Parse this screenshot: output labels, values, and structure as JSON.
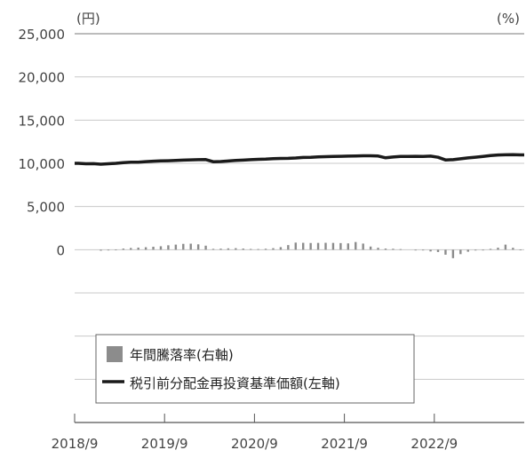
{
  "chart_data": {
    "type": "line",
    "left_axis": {
      "unit_label": "(円)",
      "ticks": [
        "25,000",
        "20,000",
        "15,000",
        "10,000",
        "5,000",
        "0"
      ],
      "tick_values": [
        25000,
        20000,
        15000,
        10000,
        5000,
        0
      ],
      "ylim": [
        -20000,
        25000
      ]
    },
    "right_axis": {
      "unit_label": "(%)",
      "ylim": [
        -180,
        225
      ]
    },
    "x_axis": {
      "tick_labels": [
        "2018/9",
        "2019/9",
        "2020/9",
        "2021/9",
        "2022/9"
      ],
      "range": [
        "2018/9",
        "2023/8"
      ]
    },
    "legend": {
      "placement": "lower-left",
      "items": [
        {
          "label": "年間騰落率(右軸)",
          "kind": "bar",
          "color": "#8c8c8c"
        },
        {
          "label": "税引前分配金再投資基準価額(左軸)",
          "kind": "line",
          "color": "#1a1a1a"
        }
      ]
    },
    "grid": "horizontal",
    "series": [
      {
        "type": "line",
        "axis": "left",
        "color": "#1a1a1a",
        "x": [
          "2018/9",
          "2018/10",
          "2018/11",
          "2018/12",
          "2019/1",
          "2019/2",
          "2019/3",
          "2019/4",
          "2019/5",
          "2019/6",
          "2019/7",
          "2019/8",
          "2019/9",
          "2019/10",
          "2019/11",
          "2019/12",
          "2020/1",
          "2020/2",
          "2020/3",
          "2020/4",
          "2020/5",
          "2020/6",
          "2020/7",
          "2020/8",
          "2020/9",
          "2020/10",
          "2020/11",
          "2020/12",
          "2021/1",
          "2021/2",
          "2021/3",
          "2021/4",
          "2021/5",
          "2021/6",
          "2021/7",
          "2021/8",
          "2021/9",
          "2021/10",
          "2021/11",
          "2021/12",
          "2022/1",
          "2022/2",
          "2022/3",
          "2022/4",
          "2022/5",
          "2022/6",
          "2022/7",
          "2022/8",
          "2022/9",
          "2022/10",
          "2022/11",
          "2022/12",
          "2023/1",
          "2023/2",
          "2023/3",
          "2023/4",
          "2023/5",
          "2023/6",
          "2023/7",
          "2023/8"
        ],
        "values": [
          10000,
          9950,
          9960,
          9900,
          9950,
          10000,
          10080,
          10120,
          10120,
          10200,
          10250,
          10280,
          10300,
          10330,
          10370,
          10400,
          10420,
          10430,
          10180,
          10210,
          10270,
          10330,
          10370,
          10420,
          10460,
          10480,
          10530,
          10570,
          10580,
          10620,
          10680,
          10700,
          10740,
          10770,
          10790,
          10810,
          10830,
          10850,
          10870,
          10870,
          10840,
          10640,
          10730,
          10790,
          10800,
          10810,
          10790,
          10830,
          10700,
          10390,
          10420,
          10520,
          10630,
          10710,
          10800,
          10890,
          10970,
          10990,
          11010,
          10980
        ]
      },
      {
        "type": "bar",
        "axis": "right",
        "color": "#8c8c8c",
        "x": [
          "2018/9",
          "2018/10",
          "2018/11",
          "2018/12",
          "2019/1",
          "2019/2",
          "2019/3",
          "2019/4",
          "2019/5",
          "2019/6",
          "2019/7",
          "2019/8",
          "2019/9",
          "2019/10",
          "2019/11",
          "2019/12",
          "2020/1",
          "2020/2",
          "2020/3",
          "2020/4",
          "2020/5",
          "2020/6",
          "2020/7",
          "2020/8",
          "2020/9",
          "2020/10",
          "2020/11",
          "2020/12",
          "2021/1",
          "2021/2",
          "2021/3",
          "2021/4",
          "2021/5",
          "2021/6",
          "2021/7",
          "2021/8",
          "2021/9",
          "2021/10",
          "2021/11",
          "2021/12",
          "2022/1",
          "2022/2",
          "2022/3",
          "2022/4",
          "2022/5",
          "2022/6",
          "2022/7",
          "2022/8",
          "2022/9",
          "2022/10",
          "2022/11",
          "2022/12",
          "2023/1",
          "2023/2",
          "2023/3",
          "2023/4",
          "2023/5",
          "2023/6",
          "2023/7",
          "2023/8"
        ],
        "values": [
          0,
          0,
          0,
          -1,
          -0.5,
          0.3,
          1.2,
          1.8,
          2.2,
          2.6,
          3.1,
          3.6,
          4.6,
          5.3,
          6.1,
          6.3,
          5.6,
          4.2,
          0.9,
          1.1,
          1.4,
          1.6,
          1.2,
          0.8,
          0.7,
          1.0,
          1.6,
          2.7,
          4.8,
          7.4,
          7.2,
          7.0,
          7.1,
          7.2,
          7.1,
          6.9,
          6.6,
          8.0,
          6.4,
          3.3,
          2.0,
          1.2,
          1.0,
          0.6,
          0,
          -0.2,
          -0.4,
          -1.8,
          -2.4,
          -5.2,
          -8.8,
          -4.6,
          -2.1,
          -0.8,
          -0.4,
          0.9,
          2.1,
          5.3,
          2.0,
          0.3
        ]
      }
    ]
  }
}
